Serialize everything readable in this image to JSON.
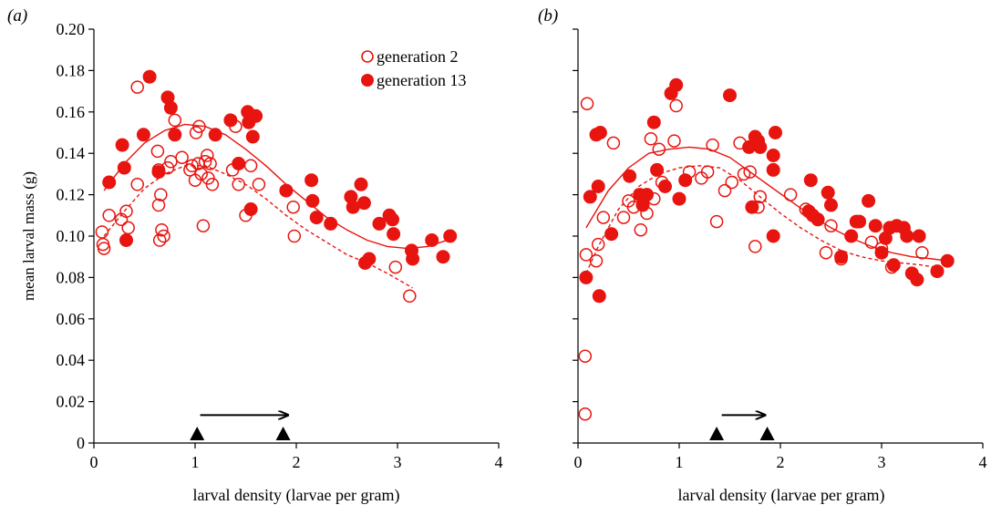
{
  "chart_data": [
    {
      "panel": "(a)",
      "type": "scatter",
      "xlabel": "larval density (larvae per gram)",
      "ylabel": "mean larval mass (g)",
      "xlim": [
        0,
        4
      ],
      "ylim": [
        0,
        0.2
      ],
      "x_ticks": [
        "0",
        "1",
        "2",
        "3",
        "4"
      ],
      "y_ticks": [
        "0",
        "0.02",
        "0.04",
        "0.06",
        "0.08",
        "0.10",
        "0.12",
        "0.14",
        "0.16",
        "0.18",
        "0.20"
      ],
      "grid": false,
      "legend": {
        "placement": "top-right",
        "entries": [
          {
            "label": "generation 2",
            "marker": "open-circle"
          },
          {
            "label": "generation 13",
            "marker": "filled-circle"
          }
        ]
      },
      "series": [
        {
          "name": "generation 2",
          "marker": "open",
          "color": "#e8140f",
          "points": [
            [
              0.08,
              0.102
            ],
            [
              0.09,
              0.096
            ],
            [
              0.1,
              0.094
            ],
            [
              0.15,
              0.11
            ],
            [
              0.27,
              0.108
            ],
            [
              0.32,
              0.112
            ],
            [
              0.34,
              0.104
            ],
            [
              0.43,
              0.172
            ],
            [
              0.43,
              0.125
            ],
            [
              0.63,
              0.141
            ],
            [
              0.64,
              0.132
            ],
            [
              0.64,
              0.115
            ],
            [
              0.65,
              0.098
            ],
            [
              0.66,
              0.12
            ],
            [
              0.67,
              0.103
            ],
            [
              0.69,
              0.1
            ],
            [
              0.73,
              0.133
            ],
            [
              0.76,
              0.136
            ],
            [
              0.8,
              0.156
            ],
            [
              0.87,
              0.138
            ],
            [
              0.95,
              0.132
            ],
            [
              0.97,
              0.134
            ],
            [
              1.0,
              0.127
            ],
            [
              1.01,
              0.15
            ],
            [
              1.03,
              0.135
            ],
            [
              1.04,
              0.153
            ],
            [
              1.06,
              0.13
            ],
            [
              1.08,
              0.105
            ],
            [
              1.1,
              0.136
            ],
            [
              1.12,
              0.139
            ],
            [
              1.13,
              0.128
            ],
            [
              1.15,
              0.135
            ],
            [
              1.17,
              0.125
            ],
            [
              1.37,
              0.132
            ],
            [
              1.4,
              0.153
            ],
            [
              1.43,
              0.125
            ],
            [
              1.5,
              0.11
            ],
            [
              1.55,
              0.134
            ],
            [
              1.63,
              0.125
            ],
            [
              1.97,
              0.114
            ],
            [
              1.98,
              0.1
            ],
            [
              2.98,
              0.085
            ],
            [
              3.12,
              0.071
            ]
          ]
        },
        {
          "name": "generation 13",
          "marker": "filled",
          "color": "#e8140f",
          "points": [
            [
              0.15,
              0.126
            ],
            [
              0.28,
              0.144
            ],
            [
              0.3,
              0.133
            ],
            [
              0.32,
              0.098
            ],
            [
              0.49,
              0.149
            ],
            [
              0.55,
              0.177
            ],
            [
              0.64,
              0.131
            ],
            [
              0.73,
              0.167
            ],
            [
              0.76,
              0.162
            ],
            [
              0.8,
              0.149
            ],
            [
              1.2,
              0.149
            ],
            [
              1.35,
              0.156
            ],
            [
              1.43,
              0.135
            ],
            [
              1.52,
              0.16
            ],
            [
              1.53,
              0.155
            ],
            [
              1.55,
              0.113
            ],
            [
              1.57,
              0.148
            ],
            [
              1.6,
              0.158
            ],
            [
              1.9,
              0.122
            ],
            [
              2.15,
              0.127
            ],
            [
              2.16,
              0.117
            ],
            [
              2.2,
              0.109
            ],
            [
              2.34,
              0.106
            ],
            [
              2.54,
              0.119
            ],
            [
              2.56,
              0.114
            ],
            [
              2.64,
              0.125
            ],
            [
              2.67,
              0.116
            ],
            [
              2.68,
              0.087
            ],
            [
              2.72,
              0.089
            ],
            [
              2.82,
              0.106
            ],
            [
              2.92,
              0.11
            ],
            [
              2.95,
              0.108
            ],
            [
              2.96,
              0.101
            ],
            [
              3.14,
              0.093
            ],
            [
              3.15,
              0.089
            ],
            [
              3.34,
              0.098
            ],
            [
              3.45,
              0.09
            ],
            [
              3.52,
              0.1
            ]
          ]
        }
      ],
      "fits": [
        {
          "series": "generation 13",
          "style": "solid",
          "points": [
            [
              0.1,
              0.122
            ],
            [
              0.3,
              0.135
            ],
            [
              0.5,
              0.145
            ],
            [
              0.7,
              0.151
            ],
            [
              0.9,
              0.154
            ],
            [
              1.1,
              0.153
            ],
            [
              1.3,
              0.149
            ],
            [
              1.5,
              0.142
            ],
            [
              1.7,
              0.134
            ],
            [
              1.9,
              0.125
            ],
            [
              2.1,
              0.117
            ],
            [
              2.3,
              0.109
            ],
            [
              2.5,
              0.103
            ],
            [
              2.7,
              0.098
            ],
            [
              2.9,
              0.095
            ],
            [
              3.1,
              0.094
            ],
            [
              3.3,
              0.095
            ],
            [
              3.55,
              0.099
            ]
          ]
        },
        {
          "series": "generation 2",
          "style": "dashed",
          "points": [
            [
              0.1,
              0.1
            ],
            [
              0.3,
              0.112
            ],
            [
              0.5,
              0.123
            ],
            [
              0.7,
              0.13
            ],
            [
              0.9,
              0.134
            ],
            [
              1.1,
              0.134
            ],
            [
              1.3,
              0.13
            ],
            [
              1.5,
              0.125
            ],
            [
              1.7,
              0.118
            ],
            [
              1.9,
              0.11
            ],
            [
              2.1,
              0.103
            ],
            [
              2.3,
              0.097
            ],
            [
              2.5,
              0.091
            ],
            [
              2.7,
              0.087
            ],
            [
              2.9,
              0.082
            ],
            [
              3.15,
              0.075
            ]
          ]
        }
      ],
      "markers": [
        {
          "shape": "triangle",
          "x": 1.02
        },
        {
          "shape": "triangle",
          "x": 1.87
        }
      ],
      "arrow": {
        "from": 1.05,
        "to": 1.92
      }
    },
    {
      "panel": "(b)",
      "type": "scatter",
      "xlabel": "larval density (larvae per gram)",
      "ylabel": "",
      "xlim": [
        0,
        4
      ],
      "ylim": [
        0,
        0.2
      ],
      "x_ticks": [
        "0",
        "1",
        "2",
        "3",
        "4"
      ],
      "y_ticks": [],
      "grid": false,
      "series": [
        {
          "name": "generation 2",
          "marker": "open",
          "color": "#e8140f",
          "points": [
            [
              0.07,
              0.014
            ],
            [
              0.07,
              0.042
            ],
            [
              0.08,
              0.091
            ],
            [
              0.09,
              0.164
            ],
            [
              0.18,
              0.088
            ],
            [
              0.2,
              0.096
            ],
            [
              0.25,
              0.109
            ],
            [
              0.35,
              0.145
            ],
            [
              0.45,
              0.109
            ],
            [
              0.5,
              0.117
            ],
            [
              0.55,
              0.114
            ],
            [
              0.62,
              0.103
            ],
            [
              0.68,
              0.111
            ],
            [
              0.72,
              0.147
            ],
            [
              0.75,
              0.118
            ],
            [
              0.8,
              0.142
            ],
            [
              0.83,
              0.126
            ],
            [
              0.95,
              0.146
            ],
            [
              0.97,
              0.163
            ],
            [
              1.1,
              0.131
            ],
            [
              1.22,
              0.128
            ],
            [
              1.28,
              0.131
            ],
            [
              1.33,
              0.144
            ],
            [
              1.37,
              0.107
            ],
            [
              1.45,
              0.122
            ],
            [
              1.52,
              0.126
            ],
            [
              1.6,
              0.145
            ],
            [
              1.64,
              0.13
            ],
            [
              1.7,
              0.131
            ],
            [
              1.75,
              0.095
            ],
            [
              1.78,
              0.114
            ],
            [
              1.8,
              0.119
            ],
            [
              2.1,
              0.12
            ],
            [
              2.25,
              0.113
            ],
            [
              2.45,
              0.092
            ],
            [
              2.5,
              0.105
            ],
            [
              2.6,
              0.089
            ],
            [
              2.9,
              0.097
            ],
            [
              3.0,
              0.094
            ],
            [
              3.1,
              0.085
            ],
            [
              3.4,
              0.092
            ]
          ]
        },
        {
          "name": "generation 13",
          "marker": "filled",
          "color": "#e8140f",
          "points": [
            [
              0.08,
              0.08
            ],
            [
              0.12,
              0.119
            ],
            [
              0.18,
              0.149
            ],
            [
              0.22,
              0.15
            ],
            [
              0.2,
              0.124
            ],
            [
              0.21,
              0.071
            ],
            [
              0.33,
              0.101
            ],
            [
              0.51,
              0.129
            ],
            [
              0.61,
              0.12
            ],
            [
              0.64,
              0.115
            ],
            [
              0.68,
              0.12
            ],
            [
              0.75,
              0.155
            ],
            [
              0.78,
              0.132
            ],
            [
              0.86,
              0.124
            ],
            [
              0.92,
              0.169
            ],
            [
              0.97,
              0.173
            ],
            [
              1.0,
              0.118
            ],
            [
              1.06,
              0.127
            ],
            [
              1.5,
              0.168
            ],
            [
              1.69,
              0.143
            ],
            [
              1.72,
              0.114
            ],
            [
              1.75,
              0.148
            ],
            [
              1.78,
              0.146
            ],
            [
              1.8,
              0.143
            ],
            [
              1.93,
              0.132
            ],
            [
              1.93,
              0.139
            ],
            [
              1.95,
              0.15
            ],
            [
              1.93,
              0.1
            ],
            [
              2.28,
              0.112
            ],
            [
              2.3,
              0.127
            ],
            [
              2.32,
              0.11
            ],
            [
              2.37,
              0.108
            ],
            [
              2.47,
              0.121
            ],
            [
              2.5,
              0.115
            ],
            [
              2.6,
              0.09
            ],
            [
              2.7,
              0.1
            ],
            [
              2.75,
              0.107
            ],
            [
              2.78,
              0.107
            ],
            [
              2.87,
              0.117
            ],
            [
              2.94,
              0.105
            ],
            [
              3.0,
              0.092
            ],
            [
              3.04,
              0.099
            ],
            [
              3.08,
              0.104
            ],
            [
              3.12,
              0.086
            ],
            [
              3.15,
              0.105
            ],
            [
              3.22,
              0.104
            ],
            [
              3.25,
              0.1
            ],
            [
              3.3,
              0.082
            ],
            [
              3.35,
              0.079
            ],
            [
              3.37,
              0.1
            ],
            [
              3.55,
              0.083
            ],
            [
              3.65,
              0.088
            ]
          ]
        }
      ],
      "fits": [
        {
          "series": "generation 13",
          "style": "solid",
          "points": [
            [
              0.08,
              0.104
            ],
            [
              0.3,
              0.122
            ],
            [
              0.5,
              0.133
            ],
            [
              0.7,
              0.14
            ],
            [
              0.9,
              0.142
            ],
            [
              1.1,
              0.143
            ],
            [
              1.3,
              0.142
            ],
            [
              1.5,
              0.138
            ],
            [
              1.7,
              0.131
            ],
            [
              1.9,
              0.124
            ],
            [
              2.1,
              0.117
            ],
            [
              2.3,
              0.11
            ],
            [
              2.5,
              0.104
            ],
            [
              2.7,
              0.099
            ],
            [
              2.9,
              0.095
            ],
            [
              3.1,
              0.092
            ],
            [
              3.3,
              0.09
            ],
            [
              3.5,
              0.089
            ],
            [
              3.65,
              0.088
            ]
          ]
        },
        {
          "series": "generation 2",
          "style": "dashed",
          "points": [
            [
              0.08,
              0.082
            ],
            [
              0.2,
              0.095
            ],
            [
              0.4,
              0.113
            ],
            [
              0.6,
              0.124
            ],
            [
              0.8,
              0.13
            ],
            [
              1.0,
              0.133
            ],
            [
              1.2,
              0.134
            ],
            [
              1.4,
              0.133
            ],
            [
              1.6,
              0.127
            ],
            [
              1.8,
              0.119
            ],
            [
              2.0,
              0.111
            ],
            [
              2.2,
              0.104
            ],
            [
              2.4,
              0.098
            ],
            [
              2.6,
              0.093
            ],
            [
              2.8,
              0.09
            ],
            [
              3.0,
              0.088
            ],
            [
              3.2,
              0.087
            ],
            [
              3.4,
              0.086
            ],
            [
              3.52,
              0.085
            ]
          ]
        }
      ],
      "markers": [
        {
          "shape": "triangle",
          "x": 1.37
        },
        {
          "shape": "triangle",
          "x": 1.87
        }
      ],
      "arrow": {
        "from": 1.42,
        "to": 1.85
      }
    }
  ]
}
